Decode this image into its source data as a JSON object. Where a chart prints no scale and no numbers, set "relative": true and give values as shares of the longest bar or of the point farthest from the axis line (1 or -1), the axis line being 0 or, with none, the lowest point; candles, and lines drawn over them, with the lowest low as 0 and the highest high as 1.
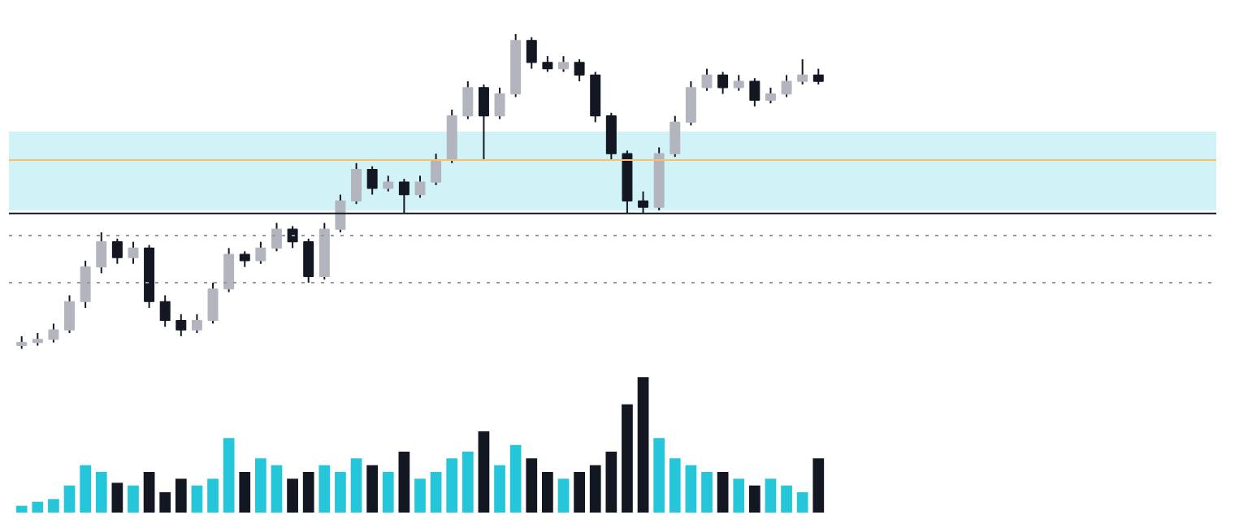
{
  "chart_data": [
    {
      "type": "candlestick",
      "relative": true,
      "grid": false,
      "categories": [
        null,
        null,
        null,
        null,
        null,
        null,
        null,
        null,
        null,
        null,
        null,
        null,
        null,
        null,
        null,
        null,
        null,
        null,
        null,
        null,
        null,
        null,
        null,
        null,
        null,
        null,
        null,
        null,
        null,
        null,
        null,
        null,
        null,
        null,
        null,
        null,
        null,
        null,
        null,
        null,
        null,
        null,
        null,
        null,
        null,
        null,
        null,
        null,
        null,
        null,
        null
      ],
      "ohlc": [
        [
          0.01,
          0.04,
          0.0,
          0.02
        ],
        [
          0.02,
          0.05,
          0.01,
          0.03
        ],
        [
          0.03,
          0.08,
          0.02,
          0.06
        ],
        [
          0.06,
          0.17,
          0.05,
          0.15
        ],
        [
          0.15,
          0.28,
          0.13,
          0.26
        ],
        [
          0.26,
          0.37,
          0.24,
          0.34
        ],
        [
          0.34,
          0.35,
          0.27,
          0.29
        ],
        [
          0.29,
          0.34,
          0.27,
          0.32
        ],
        [
          0.32,
          0.33,
          0.13,
          0.15
        ],
        [
          0.15,
          0.17,
          0.07,
          0.09
        ],
        [
          0.09,
          0.11,
          0.04,
          0.06
        ],
        [
          0.06,
          0.11,
          0.05,
          0.09
        ],
        [
          0.09,
          0.21,
          0.08,
          0.19
        ],
        [
          0.19,
          0.32,
          0.18,
          0.3
        ],
        [
          0.3,
          0.31,
          0.26,
          0.28
        ],
        [
          0.28,
          0.34,
          0.27,
          0.32
        ],
        [
          0.32,
          0.4,
          0.31,
          0.38
        ],
        [
          0.38,
          0.39,
          0.32,
          0.34
        ],
        [
          0.34,
          0.35,
          0.21,
          0.23
        ],
        [
          0.23,
          0.4,
          0.22,
          0.38
        ],
        [
          0.38,
          0.49,
          0.37,
          0.47
        ],
        [
          0.47,
          0.59,
          0.46,
          0.57
        ],
        [
          0.57,
          0.58,
          0.49,
          0.51
        ],
        [
          0.51,
          0.55,
          0.5,
          0.53
        ],
        [
          0.53,
          0.54,
          0.43,
          0.49
        ],
        [
          0.49,
          0.55,
          0.48,
          0.53
        ],
        [
          0.53,
          0.62,
          0.52,
          0.6
        ],
        [
          0.6,
          0.76,
          0.59,
          0.74
        ],
        [
          0.74,
          0.85,
          0.73,
          0.83
        ],
        [
          0.83,
          0.84,
          0.6,
          0.74
        ],
        [
          0.74,
          0.83,
          0.73,
          0.81
        ],
        [
          0.81,
          1.0,
          0.8,
          0.98
        ],
        [
          0.98,
          0.99,
          0.89,
          0.91
        ],
        [
          0.91,
          0.93,
          0.88,
          0.89
        ],
        [
          0.89,
          0.93,
          0.88,
          0.91
        ],
        [
          0.91,
          0.92,
          0.85,
          0.87
        ],
        [
          0.87,
          0.88,
          0.72,
          0.74
        ],
        [
          0.74,
          0.75,
          0.6,
          0.62
        ],
        [
          0.62,
          0.63,
          0.43,
          0.47
        ],
        [
          0.47,
          0.5,
          0.43,
          0.45
        ],
        [
          0.45,
          0.64,
          0.44,
          0.62
        ],
        [
          0.62,
          0.74,
          0.61,
          0.72
        ],
        [
          0.72,
          0.85,
          0.71,
          0.83
        ],
        [
          0.83,
          0.89,
          0.82,
          0.87
        ],
        [
          0.87,
          0.88,
          0.81,
          0.83
        ],
        [
          0.83,
          0.87,
          0.82,
          0.85
        ],
        [
          0.85,
          0.86,
          0.77,
          0.79
        ],
        [
          0.79,
          0.83,
          0.78,
          0.81
        ],
        [
          0.81,
          0.87,
          0.8,
          0.85
        ],
        [
          0.85,
          0.92,
          0.84,
          0.87
        ],
        [
          0.87,
          0.89,
          0.84,
          0.85
        ]
      ],
      "colors": [
        "#b2b5be",
        "#b2b5be",
        "#b2b5be",
        "#b2b5be",
        "#b2b5be",
        "#b2b5be",
        "#131722",
        "#b2b5be",
        "#131722",
        "#131722",
        "#131722",
        "#b2b5be",
        "#b2b5be",
        "#b2b5be",
        "#131722",
        "#b2b5be",
        "#b2b5be",
        "#131722",
        "#131722",
        "#b2b5be",
        "#b2b5be",
        "#b2b5be",
        "#131722",
        "#b2b5be",
        "#131722",
        "#b2b5be",
        "#b2b5be",
        "#b2b5be",
        "#b2b5be",
        "#131722",
        "#b2b5be",
        "#b2b5be",
        "#131722",
        "#131722",
        "#b2b5be",
        "#131722",
        "#131722",
        "#131722",
        "#131722",
        "#131722",
        "#b2b5be",
        "#b2b5be",
        "#b2b5be",
        "#b2b5be",
        "#131722",
        "#b2b5be",
        "#131722",
        "#b2b5be",
        "#b2b5be",
        "#b2b5be",
        "#131722"
      ],
      "ref_lines": [
        {
          "axis": "y",
          "value": 0.43,
          "color": "#131722",
          "line_style": "solid"
        },
        {
          "axis": "y",
          "value": 0.6,
          "color": "#f5c26b",
          "line_style": "solid"
        },
        {
          "axis": "y",
          "value": 0.36,
          "color": "#9598a1",
          "line_style": "dotted"
        },
        {
          "axis": "y",
          "value": 0.21,
          "color": "#9598a1",
          "line_style": "dotted"
        }
      ],
      "bands": [
        {
          "axis": "y",
          "from": 0.44,
          "to": 0.69,
          "color": "#b2ebf2"
        }
      ]
    },
    {
      "type": "bar",
      "relative": true,
      "grid": false,
      "categories": [
        null,
        null,
        null,
        null,
        null,
        null,
        null,
        null,
        null,
        null,
        null,
        null,
        null,
        null,
        null,
        null,
        null,
        null,
        null,
        null,
        null,
        null,
        null,
        null,
        null,
        null,
        null,
        null,
        null,
        null,
        null,
        null,
        null,
        null,
        null,
        null,
        null,
        null,
        null,
        null,
        null,
        null,
        null,
        null,
        null,
        null,
        null,
        null,
        null,
        null,
        null
      ],
      "values": [
        0.05,
        0.08,
        0.1,
        0.2,
        0.35,
        0.3,
        0.22,
        0.2,
        0.3,
        0.15,
        0.25,
        0.2,
        0.25,
        0.55,
        0.3,
        0.4,
        0.35,
        0.25,
        0.3,
        0.35,
        0.3,
        0.4,
        0.35,
        0.3,
        0.45,
        0.25,
        0.3,
        0.4,
        0.45,
        0.6,
        0.35,
        0.5,
        0.4,
        0.3,
        0.25,
        0.3,
        0.35,
        0.45,
        0.8,
        1.0,
        0.55,
        0.4,
        0.35,
        0.3,
        0.3,
        0.25,
        0.2,
        0.25,
        0.2,
        0.15,
        0.4
      ],
      "colors": [
        "#26c6da",
        "#26c6da",
        "#26c6da",
        "#26c6da",
        "#26c6da",
        "#26c6da",
        "#131722",
        "#26c6da",
        "#131722",
        "#131722",
        "#131722",
        "#26c6da",
        "#26c6da",
        "#26c6da",
        "#131722",
        "#26c6da",
        "#26c6da",
        "#131722",
        "#131722",
        "#26c6da",
        "#26c6da",
        "#26c6da",
        "#131722",
        "#26c6da",
        "#131722",
        "#26c6da",
        "#26c6da",
        "#26c6da",
        "#26c6da",
        "#131722",
        "#26c6da",
        "#26c6da",
        "#131722",
        "#131722",
        "#26c6da",
        "#131722",
        "#131722",
        "#131722",
        "#131722",
        "#131722",
        "#26c6da",
        "#26c6da",
        "#26c6da",
        "#26c6da",
        "#131722",
        "#26c6da",
        "#131722",
        "#26c6da",
        "#26c6da",
        "#26c6da",
        "#131722"
      ]
    }
  ]
}
